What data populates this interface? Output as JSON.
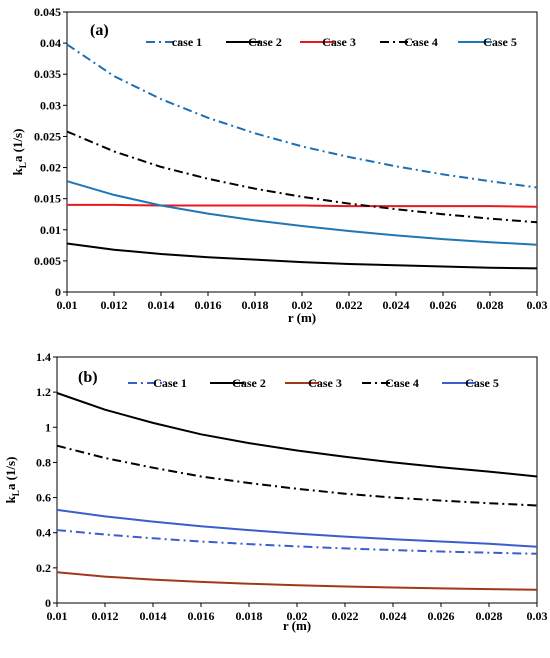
{
  "chart_data": [
    {
      "type": "line",
      "panel_label": "(a)",
      "xlabel": "r (m)",
      "ylabel": "kLa (1/s)",
      "ylabel_parts": {
        "main": "k",
        "sub": "L",
        "rest": "a (1/s)"
      },
      "xlim": [
        0.01,
        0.03
      ],
      "ylim": [
        0,
        0.045
      ],
      "x_ticks": [
        "0.01",
        "0.012",
        "0.014",
        "0.016",
        "0.018",
        "0.02",
        "0.022",
        "0.024",
        "0.026",
        "0.028",
        "0.03"
      ],
      "y_ticks": [
        "0",
        "0.005",
        "0.01",
        "0.015",
        "0.02",
        "0.025",
        "0.03",
        "0.035",
        "0.04",
        "0.045"
      ],
      "grid": false,
      "legend_position": "top",
      "x": [
        0.01,
        0.012,
        0.014,
        0.016,
        0.018,
        0.02,
        0.022,
        0.024,
        0.026,
        0.028,
        0.03
      ],
      "series": [
        {
          "name": "case 1",
          "color": "#1f6fb4",
          "dash": "dashdot",
          "values": [
            0.0398,
            0.0347,
            0.031,
            0.028,
            0.0255,
            0.0234,
            0.0217,
            0.0202,
            0.0189,
            0.0178,
            0.0168
          ]
        },
        {
          "name": "Case 2",
          "color": "#000000",
          "dash": "solid",
          "values": [
            0.0078,
            0.0068,
            0.0061,
            0.0056,
            0.0052,
            0.0048,
            0.0045,
            0.0043,
            0.0041,
            0.0039,
            0.0038
          ]
        },
        {
          "name": "Case 3",
          "color": "#e8191e",
          "dash": "solid",
          "values": [
            0.014,
            0.014,
            0.0139,
            0.0139,
            0.0139,
            0.0139,
            0.0138,
            0.0138,
            0.0138,
            0.0138,
            0.0137
          ]
        },
        {
          "name": "Case 4",
          "color": "#000000",
          "dash": "dashdot",
          "values": [
            0.0258,
            0.0226,
            0.0201,
            0.0182,
            0.0166,
            0.0153,
            0.0142,
            0.0133,
            0.0125,
            0.0118,
            0.0112
          ]
        },
        {
          "name": "Case 5",
          "color": "#1f77b4",
          "dash": "solid",
          "values": [
            0.0178,
            0.0156,
            0.0139,
            0.0126,
            0.0115,
            0.0106,
            0.0098,
            0.0091,
            0.0085,
            0.008,
            0.0076
          ]
        }
      ]
    },
    {
      "type": "line",
      "panel_label": "(b)",
      "xlabel": "r (m)",
      "ylabel": "kLa (1/s)",
      "ylabel_parts": {
        "main": "k",
        "sub": "L",
        "rest": "a (1/s)"
      },
      "xlim": [
        0.01,
        0.03
      ],
      "ylim": [
        0,
        1.4
      ],
      "x_ticks": [
        "0.01",
        "0.012",
        "0.014",
        "0.016",
        "0.018",
        "0.02",
        "0.022",
        "0.024",
        "0.026",
        "0.028",
        "0.03"
      ],
      "y_ticks": [
        "0",
        "0.2",
        "0.4",
        "0.6",
        "0.8",
        "1",
        "1.2",
        "1.4"
      ],
      "grid": false,
      "legend_position": "top",
      "x": [
        0.01,
        0.012,
        0.014,
        0.016,
        0.018,
        0.02,
        0.022,
        0.024,
        0.026,
        0.028,
        0.03
      ],
      "series": [
        {
          "name": "Case 1",
          "color": "#3a5fcd",
          "dash": "dashdot",
          "values": [
            0.415,
            0.39,
            0.368,
            0.35,
            0.335,
            0.322,
            0.311,
            0.301,
            0.293,
            0.286,
            0.28
          ]
        },
        {
          "name": "Case 2",
          "color": "#000000",
          "dash": "solid",
          "values": [
            1.195,
            1.1,
            1.025,
            0.96,
            0.91,
            0.868,
            0.832,
            0.8,
            0.772,
            0.748,
            0.72
          ]
        },
        {
          "name": "Case 3",
          "color": "#a0391a",
          "dash": "solid",
          "values": [
            0.175,
            0.15,
            0.133,
            0.12,
            0.11,
            0.101,
            0.094,
            0.088,
            0.083,
            0.079,
            0.075
          ]
        },
        {
          "name": "Case 4",
          "color": "#000000",
          "dash": "dashdot",
          "values": [
            0.895,
            0.825,
            0.77,
            0.72,
            0.683,
            0.65,
            0.622,
            0.6,
            0.583,
            0.568,
            0.555
          ]
        },
        {
          "name": "Case 5",
          "color": "#3a5fcd",
          "dash": "solid",
          "values": [
            0.53,
            0.493,
            0.463,
            0.437,
            0.415,
            0.395,
            0.378,
            0.363,
            0.35,
            0.337,
            0.32
          ]
        }
      ]
    }
  ]
}
